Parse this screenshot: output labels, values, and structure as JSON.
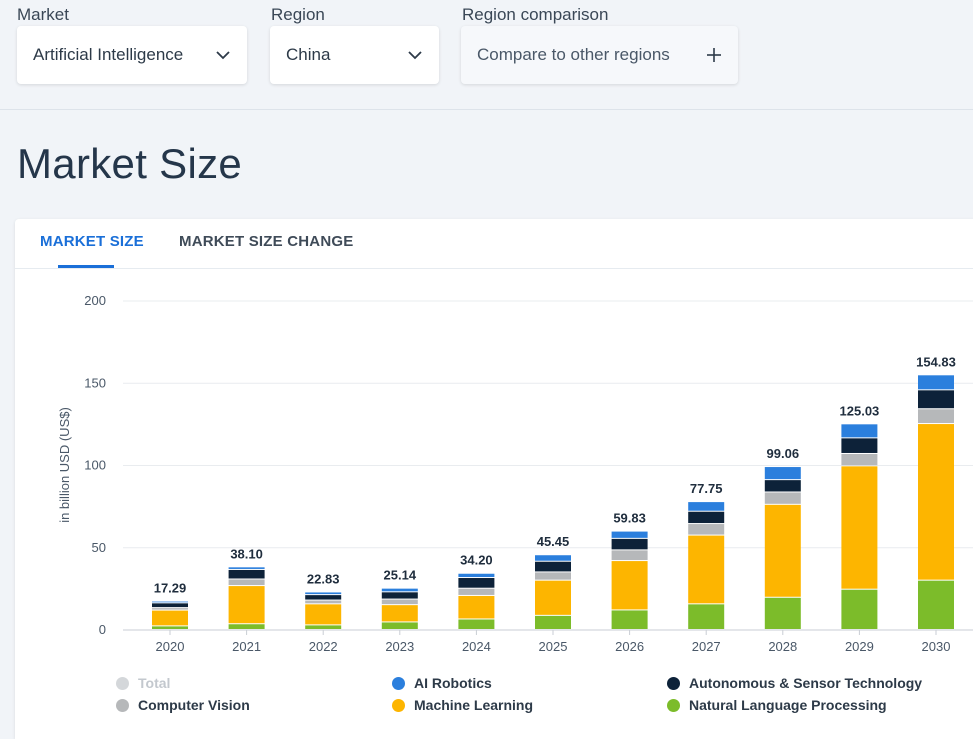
{
  "filters": {
    "market": {
      "label": "Market",
      "value": "Artificial Intelligence"
    },
    "region": {
      "label": "Region",
      "value": "China"
    },
    "comparison": {
      "label": "Region comparison",
      "value": "Compare to other regions"
    }
  },
  "page_title": "Market Size",
  "tabs": {
    "market_size": "MARKET SIZE",
    "market_size_change": "MARKET SIZE CHANGE"
  },
  "colors": {
    "nlp": "#7cbc2a",
    "ml": "#fdb500",
    "cv": "#b6b8ba",
    "autonomous": "#0d2239",
    "robotics": "#2b7fdd",
    "grid": "#e9ecef"
  },
  "chart_data": {
    "type": "bar",
    "stacked": true,
    "ylabel": "in billion USD (US$)",
    "ylim": [
      0,
      200
    ],
    "yticks": [
      0,
      50,
      100,
      150,
      200
    ],
    "categories": [
      "2020",
      "2021",
      "2022",
      "2023",
      "2024",
      "2025",
      "2026",
      "2027",
      "2028",
      "2029",
      "2030"
    ],
    "totals": [
      17.29,
      38.1,
      22.83,
      25.14,
      34.2,
      45.45,
      59.83,
      77.75,
      99.06,
      125.03,
      154.83
    ],
    "total_labels": [
      "17.29",
      "38.10",
      "22.83",
      "25.14",
      "34.20",
      "45.45",
      "59.83",
      "77.75",
      "99.06",
      "125.03",
      "154.83"
    ],
    "series": [
      {
        "name": "Natural Language Processing",
        "color_key": "nlp",
        "values": [
          2.2,
          3.5,
          2.8,
          4.6,
          6.4,
          8.6,
          11.9,
          15.6,
          19.6,
          24.5,
          30.0
        ]
      },
      {
        "name": "Machine Learning",
        "color_key": "ml",
        "values": [
          9.6,
          23.2,
          12.8,
          10.5,
          14.3,
          21.4,
          30.0,
          41.8,
          56.5,
          75.0,
          95.2
        ]
      },
      {
        "name": "Computer Vision",
        "color_key": "cv",
        "values": [
          1.5,
          4.0,
          2.3,
          3.4,
          4.4,
          5.0,
          6.5,
          7.0,
          7.5,
          7.5,
          9.0
        ]
      },
      {
        "name": "Autonomous & Sensor Technology",
        "color_key": "autonomous",
        "values": [
          2.9,
          5.8,
          3.3,
          4.4,
          6.5,
          6.5,
          7.0,
          7.5,
          7.5,
          9.5,
          11.5
        ]
      },
      {
        "name": "AI Robotics",
        "color_key": "robotics",
        "values": [
          1.09,
          1.6,
          1.63,
          2.24,
          2.6,
          3.95,
          4.43,
          5.85,
          7.96,
          8.53,
          9.13
        ]
      }
    ],
    "legend": [
      {
        "name": "Total",
        "color": "#d4d7da",
        "muted": true
      },
      {
        "name": "AI Robotics",
        "color_key": "robotics"
      },
      {
        "name": "Autonomous & Sensor Technology",
        "color_key": "autonomous"
      },
      {
        "name": "Computer Vision",
        "color_key": "cv"
      },
      {
        "name": "Machine Learning",
        "color_key": "ml"
      },
      {
        "name": "Natural Language Processing",
        "color_key": "nlp"
      }
    ]
  }
}
